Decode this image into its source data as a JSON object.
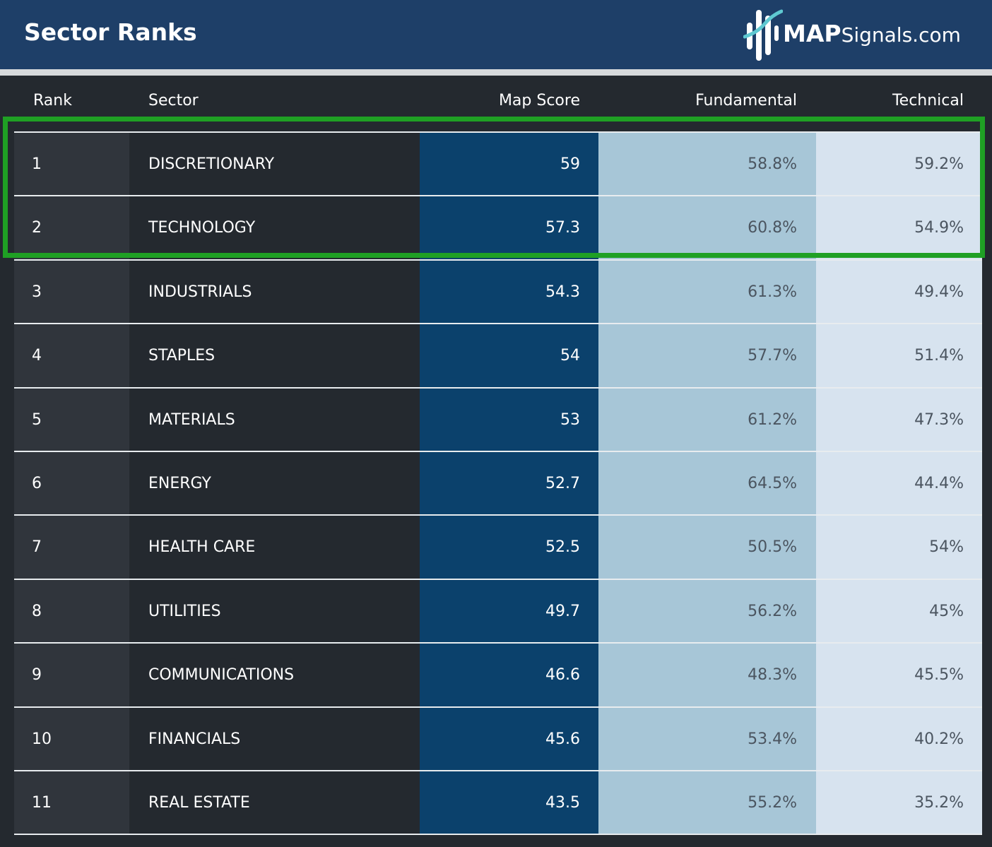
{
  "header": {
    "title": "Sector Ranks",
    "logo_text_bold": "MAP",
    "logo_text_light": "Signals.com"
  },
  "colors": {
    "header_bg": "#1e3f68",
    "map_score_bg": "#0b416c",
    "fundamental_bg": "#a7c6d7",
    "technical_bg": "#d7e3ef",
    "highlight": "#1fa024"
  },
  "chart_data": {
    "type": "table",
    "title": "Sector Ranks",
    "columns": [
      "Rank",
      "Sector",
      "Map Score",
      "Fundamental",
      "Technical"
    ],
    "rows": [
      {
        "rank": "1",
        "sector": "DISCRETIONARY",
        "map_score": "59",
        "fundamental": "58.8%",
        "technical": "59.2%"
      },
      {
        "rank": "2",
        "sector": "TECHNOLOGY",
        "map_score": "57.3",
        "fundamental": "60.8%",
        "technical": "54.9%"
      },
      {
        "rank": "3",
        "sector": "INDUSTRIALS",
        "map_score": "54.3",
        "fundamental": "61.3%",
        "technical": "49.4%"
      },
      {
        "rank": "4",
        "sector": "STAPLES",
        "map_score": "54",
        "fundamental": "57.7%",
        "technical": "51.4%"
      },
      {
        "rank": "5",
        "sector": "MATERIALS",
        "map_score": "53",
        "fundamental": "61.2%",
        "technical": "47.3%"
      },
      {
        "rank": "6",
        "sector": "ENERGY",
        "map_score": "52.7",
        "fundamental": "64.5%",
        "technical": "44.4%"
      },
      {
        "rank": "7",
        "sector": "HEALTH CARE",
        "map_score": "52.5",
        "fundamental": "50.5%",
        "technical": "54%"
      },
      {
        "rank": "8",
        "sector": "UTILITIES",
        "map_score": "49.7",
        "fundamental": "56.2%",
        "technical": "45%"
      },
      {
        "rank": "9",
        "sector": "COMMUNICATIONS",
        "map_score": "46.6",
        "fundamental": "48.3%",
        "technical": "45.5%"
      },
      {
        "rank": "10",
        "sector": "FINANCIALS",
        "map_score": "45.6",
        "fundamental": "53.4%",
        "technical": "40.2%"
      },
      {
        "rank": "11",
        "sector": "REAL ESTATE",
        "map_score": "43.5",
        "fundamental": "55.2%",
        "technical": "35.2%"
      }
    ],
    "highlighted_ranks": [
      "1",
      "2"
    ]
  }
}
